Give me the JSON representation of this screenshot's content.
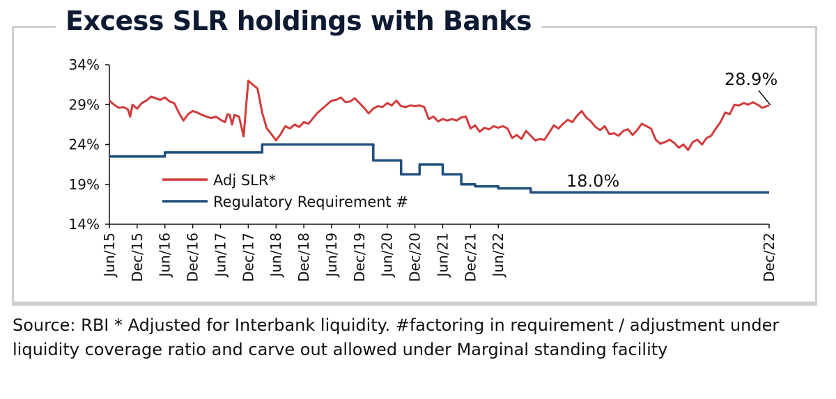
{
  "colors": {
    "adj_slr": "#d23b3b",
    "regulatory": "#1f4e7c",
    "axis": "#111111",
    "frame": "#cfcfcf",
    "title": "#0c1a33"
  },
  "chart_data": {
    "type": "line",
    "title": "Excess SLR holdings with Banks",
    "xlabel": "",
    "ylabel": "",
    "x_ticks": [
      "Jun/15",
      "Dec/15",
      "Jun/16",
      "Dec/16",
      "Jun/17",
      "Dec/17",
      "Jun/18",
      "Dec/18",
      "Jun/19",
      "Dec/19",
      "Jun/20",
      "Dec/20",
      "Jun/21",
      "Dec/21",
      "Jun/22",
      "Dec/22"
    ],
    "y_ticks": [
      "34%",
      "29%",
      "24%",
      "19%",
      "14%"
    ],
    "ylim": [
      14,
      34
    ],
    "x_unit": "months since Jun/15",
    "grid": false,
    "legend_position": "lower-left, inside plot",
    "annotations": [
      "28.9%",
      "18.0%"
    ],
    "series": [
      {
        "name": "Adj SLR*",
        "points": [
          [
            0,
            29.5
          ],
          [
            1,
            29.0
          ],
          [
            2,
            28.6
          ],
          [
            3,
            28.7
          ],
          [
            4,
            28.4
          ],
          [
            4.5,
            27.5
          ],
          [
            5,
            29.0
          ],
          [
            6,
            28.5
          ],
          [
            7,
            29.2
          ],
          [
            8,
            29.5
          ],
          [
            9,
            30.0
          ],
          [
            10,
            29.8
          ],
          [
            11,
            29.6
          ],
          [
            12,
            29.9
          ],
          [
            13,
            29.4
          ],
          [
            14,
            29.2
          ],
          [
            15,
            28.0
          ],
          [
            16,
            27.0
          ],
          [
            17,
            27.8
          ],
          [
            18,
            28.2
          ],
          [
            19,
            28.0
          ],
          [
            20,
            27.7
          ],
          [
            21,
            27.5
          ],
          [
            22,
            27.3
          ],
          [
            23,
            27.5
          ],
          [
            24,
            27.1
          ],
          [
            25,
            26.8
          ],
          [
            25.5,
            27.8
          ],
          [
            26,
            27.7
          ],
          [
            26.5,
            26.5
          ],
          [
            27,
            27.7
          ],
          [
            28,
            27.5
          ],
          [
            29,
            25.0
          ],
          [
            29.5,
            28.5
          ],
          [
            30,
            32.0
          ],
          [
            31,
            31.5
          ],
          [
            32,
            31.0
          ],
          [
            33,
            28.0
          ],
          [
            34,
            26.0
          ],
          [
            35,
            25.3
          ],
          [
            36,
            24.5
          ],
          [
            37,
            25.3
          ],
          [
            38,
            26.3
          ],
          [
            39,
            26.0
          ],
          [
            40,
            26.5
          ],
          [
            41,
            26.2
          ],
          [
            42,
            26.8
          ],
          [
            43,
            26.6
          ],
          [
            44,
            27.3
          ],
          [
            45,
            28.0
          ],
          [
            46,
            28.5
          ],
          [
            47,
            29.0
          ],
          [
            48,
            29.5
          ],
          [
            49,
            29.6
          ],
          [
            50,
            29.9
          ],
          [
            51,
            29.3
          ],
          [
            52,
            29.4
          ],
          [
            53,
            29.8
          ],
          [
            54,
            29.2
          ],
          [
            55,
            28.6
          ],
          [
            56,
            27.9
          ],
          [
            57,
            28.5
          ],
          [
            58,
            28.8
          ],
          [
            59,
            28.7
          ],
          [
            60,
            29.2
          ],
          [
            61,
            28.9
          ],
          [
            62,
            29.5
          ],
          [
            63,
            28.8
          ],
          [
            64,
            28.7
          ],
          [
            65,
            28.9
          ],
          [
            66,
            28.8
          ],
          [
            67,
            28.9
          ],
          [
            68,
            28.7
          ],
          [
            69,
            27.2
          ],
          [
            70,
            27.5
          ],
          [
            71,
            26.9
          ],
          [
            72,
            27.2
          ],
          [
            73,
            27.0
          ],
          [
            74,
            27.2
          ],
          [
            75,
            27.0
          ],
          [
            76,
            27.4
          ],
          [
            77,
            27.5
          ],
          [
            78,
            26.0
          ],
          [
            79,
            26.4
          ],
          [
            80,
            25.6
          ],
          [
            81,
            26.1
          ],
          [
            82,
            25.9
          ],
          [
            83,
            26.3
          ],
          [
            84,
            26.1
          ],
          [
            85,
            26.3
          ],
          [
            86,
            26.0
          ],
          [
            87,
            24.8
          ],
          [
            88,
            25.2
          ],
          [
            89,
            24.7
          ],
          [
            90,
            25.7
          ],
          [
            91,
            25.1
          ],
          [
            92,
            24.5
          ],
          [
            93,
            24.7
          ],
          [
            94,
            24.6
          ],
          [
            95,
            25.5
          ],
          [
            96,
            26.4
          ],
          [
            97,
            26.0
          ],
          [
            98,
            26.6
          ],
          [
            99,
            27.1
          ],
          [
            100,
            26.8
          ],
          [
            101,
            27.6
          ],
          [
            102,
            28.2
          ],
          [
            103,
            27.4
          ],
          [
            104,
            26.9
          ],
          [
            105,
            26.2
          ],
          [
            106,
            25.8
          ],
          [
            107,
            26.3
          ],
          [
            108,
            25.3
          ],
          [
            109,
            25.4
          ],
          [
            110,
            25.1
          ],
          [
            111,
            25.7
          ],
          [
            112,
            25.9
          ],
          [
            113,
            25.2
          ],
          [
            114,
            25.8
          ],
          [
            115,
            26.6
          ],
          [
            116,
            26.3
          ],
          [
            117,
            26.0
          ],
          [
            118,
            24.6
          ],
          [
            119,
            24.1
          ],
          [
            120,
            24.3
          ],
          [
            121,
            24.6
          ],
          [
            122,
            24.2
          ],
          [
            123,
            23.6
          ],
          [
            124,
            24.0
          ],
          [
            125,
            23.3
          ],
          [
            126,
            24.3
          ],
          [
            127,
            24.6
          ],
          [
            128,
            24.0
          ],
          [
            129,
            24.8
          ],
          [
            130,
            25.1
          ],
          [
            131,
            26.0
          ],
          [
            132,
            26.8
          ],
          [
            133,
            28.0
          ],
          [
            134,
            27.8
          ],
          [
            135,
            29.0
          ],
          [
            136,
            28.9
          ],
          [
            137,
            29.2
          ],
          [
            138,
            29.0
          ],
          [
            139,
            29.3
          ],
          [
            140,
            29.0
          ],
          [
            141,
            28.6
          ],
          [
            142,
            28.8
          ],
          [
            142.5,
            28.9
          ]
        ]
      },
      {
        "name": "Regulatory Requirement #",
        "points": [
          [
            0,
            22.5
          ],
          [
            12,
            22.5
          ],
          [
            12,
            23.0
          ],
          [
            33,
            23.0
          ],
          [
            33,
            24.0
          ],
          [
            57,
            24.0
          ],
          [
            57,
            22.0
          ],
          [
            63,
            22.0
          ],
          [
            63,
            20.25
          ],
          [
            67,
            20.25
          ],
          [
            67,
            21.5
          ],
          [
            72,
            21.5
          ],
          [
            72,
            20.25
          ],
          [
            76,
            20.25
          ],
          [
            76,
            19.0
          ],
          [
            79,
            19.0
          ],
          [
            79,
            18.75
          ],
          [
            84,
            18.75
          ],
          [
            84,
            18.5
          ],
          [
            91,
            18.5
          ],
          [
            91,
            18.0
          ],
          [
            142.5,
            18.0
          ]
        ]
      }
    ]
  },
  "source_note": "Source: RBI * Adjusted for Interbank liquidity. #factoring in requirement / adjustment under liquidity coverage ratio and carve out allowed under Marginal standing facility"
}
